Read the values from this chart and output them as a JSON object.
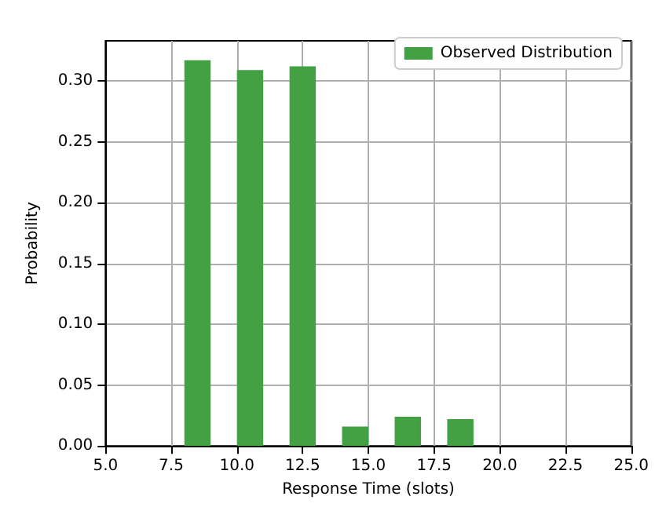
{
  "chart_data": {
    "type": "histogram",
    "xlabel": "Response Time (slots)",
    "ylabel": "Probability",
    "bins": [
      8,
      9,
      10,
      11,
      12,
      13,
      14,
      15,
      16,
      17,
      18,
      19
    ],
    "series": [
      {
        "name": "Observed Distribution",
        "color": "#43a043",
        "values": [
          0.317,
          0,
          0.309,
          0,
          0.312,
          0,
          0.016,
          0,
          0.024,
          0,
          0.022
        ]
      }
    ],
    "xlim": [
      5,
      25
    ],
    "xticks": [
      {
        "value": 5,
        "label": "5.0"
      },
      {
        "value": 7.5,
        "label": "7.5"
      },
      {
        "value": 10,
        "label": "10.0"
      },
      {
        "value": 12.5,
        "label": "12.5"
      },
      {
        "value": 15,
        "label": "15.0"
      },
      {
        "value": 17.5,
        "label": "17.5"
      },
      {
        "value": 20,
        "label": "20.0"
      },
      {
        "value": 22.5,
        "label": "22.5"
      },
      {
        "value": 25,
        "label": "25.0"
      }
    ],
    "ylim": [
      0,
      0.333
    ],
    "yticks": [
      {
        "value": 0,
        "label": "0.00"
      },
      {
        "value": 0.05,
        "label": "0.05"
      },
      {
        "value": 0.1,
        "label": "0.10"
      },
      {
        "value": 0.15,
        "label": "0.15"
      },
      {
        "value": 0.2,
        "label": "0.20"
      },
      {
        "value": 0.25,
        "label": "0.25"
      },
      {
        "value": 0.3,
        "label": "0.30"
      }
    ],
    "grid": true,
    "legend": "top right"
  }
}
